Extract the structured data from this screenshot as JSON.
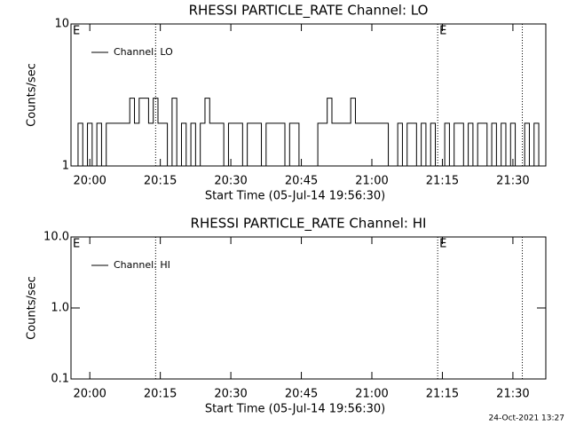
{
  "chart_data": [
    {
      "type": "line",
      "title": "RHESSI PARTICLE_RATE Channel: LO",
      "xlabel": "Start Time (05-Jul-14 19:56:30)",
      "ylabel": "Counts/sec",
      "log_y": true,
      "ylim": [
        1,
        10
      ],
      "yticks": [
        1,
        10
      ],
      "xlim": [
        "19:56",
        "21:37"
      ],
      "xticks": [
        "20:00",
        "20:15",
        "20:30",
        "20:45",
        "21:00",
        "21:15",
        "21:30"
      ],
      "vlines": [
        "20:14",
        "21:14",
        "21:32"
      ],
      "annotations": [
        {
          "text": "E",
          "x": "19:56"
        },
        {
          "text": "E",
          "x": "21:14"
        }
      ],
      "legend": "upper left",
      "x": [
        "19:57",
        "19:58",
        "19:59",
        "20:00",
        "20:01",
        "20:02",
        "20:03",
        "20:04",
        "20:05",
        "20:06",
        "20:07",
        "20:08",
        "20:09",
        "20:10",
        "20:11",
        "20:12",
        "20:13",
        "20:14",
        "20:15",
        "20:16",
        "20:17",
        "20:18",
        "20:19",
        "20:20",
        "20:21",
        "20:22",
        "20:23",
        "20:24",
        "20:25",
        "20:26",
        "20:27",
        "20:28",
        "20:29",
        "20:30",
        "20:31",
        "20:32",
        "20:33",
        "20:34",
        "20:35",
        "20:36",
        "20:37",
        "20:38",
        "20:39",
        "20:40",
        "20:41",
        "20:42",
        "20:43",
        "20:44",
        "20:45",
        "20:46",
        "20:47",
        "20:48",
        "20:49",
        "20:50",
        "20:51",
        "20:52",
        "20:53",
        "20:54",
        "20:55",
        "20:56",
        "20:57",
        "20:58",
        "20:59",
        "21:00",
        "21:01",
        "21:02",
        "21:03",
        "21:04",
        "21:05",
        "21:06",
        "21:07",
        "21:08",
        "21:09",
        "21:10",
        "21:11",
        "21:12",
        "21:13",
        "21:14",
        "21:15",
        "21:16",
        "21:17",
        "21:18",
        "21:19",
        "21:20",
        "21:21",
        "21:22",
        "21:23",
        "21:24",
        "21:25",
        "21:26",
        "21:27",
        "21:28",
        "21:29",
        "21:30",
        "21:31",
        "21:32",
        "21:33",
        "21:34",
        "21:35",
        "21:36"
      ],
      "series": [
        {
          "name": "Channel: LO",
          "color": "#000000",
          "values": [
            1,
            2,
            1,
            2,
            1,
            2,
            1,
            2,
            2,
            2,
            2,
            2,
            3,
            2,
            3,
            3,
            2,
            3,
            2,
            2,
            1,
            3,
            1,
            2,
            1,
            2,
            1,
            2,
            3,
            2,
            2,
            2,
            1,
            2,
            2,
            2,
            1,
            2,
            2,
            2,
            1,
            2,
            2,
            2,
            2,
            1,
            2,
            2,
            1,
            1,
            1,
            1,
            2,
            2,
            3,
            2,
            2,
            2,
            2,
            3,
            2,
            2,
            2,
            2,
            2,
            2,
            2,
            1,
            1,
            2,
            1,
            2,
            2,
            1,
            2,
            1,
            2,
            1,
            1,
            2,
            1,
            2,
            2,
            1,
            2,
            1,
            2,
            2,
            1,
            2,
            1,
            2,
            1,
            2,
            1,
            1,
            2,
            1,
            2,
            1
          ]
        }
      ]
    },
    {
      "type": "line",
      "title": "RHESSI PARTICLE_RATE Channel: HI",
      "xlabel": "Start Time (05-Jul-14 19:56:30)",
      "ylabel": "Counts/sec",
      "log_y": true,
      "ylim": [
        0.1,
        10
      ],
      "yticks": [
        0.1,
        {
          "value": 1,
          "label": "1.0"
        },
        {
          "value": 10,
          "label": "10.0"
        }
      ],
      "xlim": [
        "19:56",
        "21:37"
      ],
      "xticks": [
        "20:00",
        "20:15",
        "20:30",
        "20:45",
        "21:00",
        "21:15",
        "21:30"
      ],
      "vlines": [
        "20:14",
        "21:14",
        "21:32"
      ],
      "annotations": [
        {
          "text": "E",
          "x": "19:56"
        },
        {
          "text": "E",
          "x": "21:14"
        }
      ],
      "legend": "upper left",
      "x": [],
      "series": [
        {
          "name": "Channel: HI",
          "color": "#000000",
          "values": []
        }
      ]
    }
  ],
  "footer": "24-Oct-2021 13:27"
}
